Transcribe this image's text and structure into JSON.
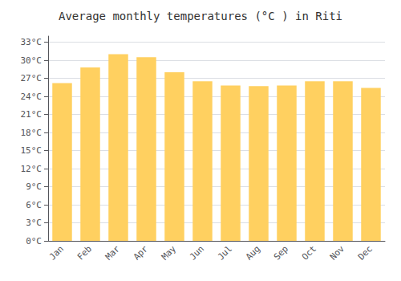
{
  "chart_data": {
    "type": "bar",
    "title": "Average monthly temperatures (°C ) in Riti",
    "categories": [
      "Jan",
      "Feb",
      "Mar",
      "Apr",
      "May",
      "Jun",
      "Jul",
      "Aug",
      "Sep",
      "Oct",
      "Nov",
      "Dec"
    ],
    "values": [
      26.2,
      28.8,
      31.0,
      30.5,
      28.0,
      26.5,
      25.8,
      25.7,
      25.8,
      26.5,
      26.5,
      25.4
    ],
    "color": "#FFD060",
    "ylim": [
      0,
      34
    ],
    "yticks": [
      {
        "value": 0,
        "label": "0°C"
      },
      {
        "value": 3,
        "label": "3°C"
      },
      {
        "value": 6,
        "label": "6°C"
      },
      {
        "value": 9,
        "label": "9°C"
      },
      {
        "value": 12,
        "label": "12°C"
      },
      {
        "value": 15,
        "label": "15°C"
      },
      {
        "value": 18,
        "label": "18°C"
      },
      {
        "value": 21,
        "label": "21°C"
      },
      {
        "value": 24,
        "label": "24°C"
      },
      {
        "value": 27,
        "label": "27°C"
      },
      {
        "value": 30,
        "label": "30°C"
      },
      {
        "value": 33,
        "label": "33°C"
      }
    ],
    "grid": true
  }
}
